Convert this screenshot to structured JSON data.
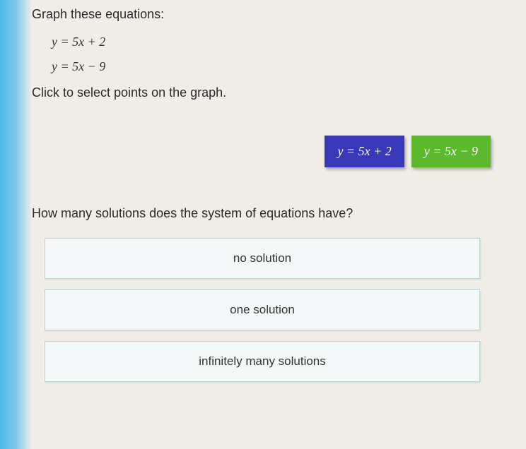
{
  "instructions": {
    "title": "Graph these equations:",
    "equation1": "y = 5x + 2",
    "equation2": "y = 5x − 9",
    "click_prompt": "Click to select points on the graph."
  },
  "equation_buttons": {
    "button1": {
      "label": "y = 5x + 2",
      "background_color": "#3838b8",
      "text_color": "#ffffff"
    },
    "button2": {
      "label": "y = 5x − 9",
      "background_color": "#5cb82c",
      "text_color": "#ffffff"
    }
  },
  "question": {
    "text": "How many solutions does the system of equations have?",
    "options": [
      "no solution",
      "one solution",
      "infinitely many solutions"
    ],
    "option_background": "#f5f8f8",
    "option_border": "#b8d4d4"
  },
  "theme": {
    "page_background": "#f0ede6",
    "accent_strip": "#4db8e8",
    "text_color": "#2a2a2a",
    "font_family": "Verdana, Arial, sans-serif",
    "equation_font": "Georgia, Times New Roman, serif"
  }
}
